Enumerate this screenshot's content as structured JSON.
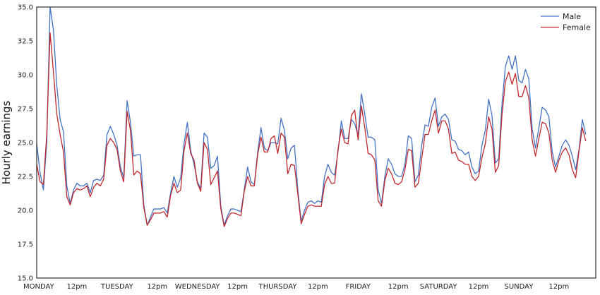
{
  "chart_data": {
    "type": "line",
    "title": "",
    "xlabel": "",
    "ylabel": "Hourly earnings",
    "ylim": [
      15.0,
      35.0
    ],
    "yticks": [
      "15.0",
      "17.5",
      "20.0",
      "22.5",
      "25.0",
      "27.5",
      "30.0",
      "32.5",
      "35.0"
    ],
    "xlim": [
      0,
      167
    ],
    "xticks": [
      {
        "x": 0,
        "label": "MONDAY"
      },
      {
        "x": 12,
        "label": "12pm"
      },
      {
        "x": 24,
        "label": "TUESDAY"
      },
      {
        "x": 36,
        "label": "12pm"
      },
      {
        "x": 48,
        "label": "WEDNESDAY"
      },
      {
        "x": 60,
        "label": "12pm"
      },
      {
        "x": 72,
        "label": "THURSDAY"
      },
      {
        "x": 84,
        "label": "12pm"
      },
      {
        "x": 96,
        "label": "FRIDAY"
      },
      {
        "x": 108,
        "label": "12pm"
      },
      {
        "x": 120,
        "label": "SATURDAY"
      },
      {
        "x": 132,
        "label": "12pm"
      },
      {
        "x": 144,
        "label": "SUNDAY"
      },
      {
        "x": 156,
        "label": "12pm"
      }
    ],
    "grid": false,
    "legend": "top-right",
    "series": [
      {
        "name": "Male",
        "color": "#4472c4",
        "values": [
          24.9,
          22.8,
          21.5,
          25.0,
          35.0,
          33.3,
          29.2,
          26.7,
          25.8,
          21.8,
          20.5,
          21.5,
          22.0,
          21.8,
          21.8,
          22.0,
          21.3,
          22.2,
          22.3,
          22.2,
          22.6,
          25.6,
          26.2,
          25.6,
          24.8,
          23.2,
          22.4,
          28.1,
          26.5,
          24.0,
          24.1,
          24.1,
          20.4,
          18.9,
          19.5,
          20.1,
          20.1,
          20.1,
          20.2,
          19.8,
          21.3,
          22.5,
          21.7,
          22.4,
          24.9,
          26.5,
          24.4,
          23.4,
          22.1,
          21.6,
          25.7,
          25.4,
          23.1,
          23.3,
          24.0,
          20.3,
          18.9,
          19.6,
          20.1,
          20.1,
          20.0,
          19.9,
          21.5,
          23.2,
          22.1,
          21.9,
          24.3,
          26.1,
          24.6,
          24.4,
          25.0,
          25.0,
          24.9,
          26.8,
          25.9,
          23.8,
          24.6,
          24.8,
          21.5,
          19.2,
          20.0,
          20.6,
          20.7,
          20.5,
          20.7,
          20.6,
          22.5,
          23.4,
          22.8,
          22.6,
          24.3,
          26.6,
          25.3,
          25.3,
          26.7,
          26.4,
          25.5,
          28.6,
          27.1,
          25.4,
          25.4,
          25.2,
          21.5,
          20.5,
          22.5,
          23.8,
          23.4,
          22.7,
          22.5,
          22.5,
          23.4,
          25.5,
          25.3,
          22.1,
          22.6,
          24.8,
          26.3,
          26.2,
          27.6,
          28.3,
          26.2,
          26.9,
          27.1,
          26.7,
          25.2,
          25.1,
          24.5,
          24.4,
          24.1,
          24.3,
          23.2,
          22.7,
          22.9,
          24.8,
          25.9,
          28.2,
          27.0,
          23.5,
          23.8,
          27.9,
          30.6,
          31.4,
          30.4,
          31.4,
          29.6,
          29.4,
          30.4,
          29.7,
          26.0,
          24.6,
          26.1,
          27.6,
          27.4,
          26.9,
          24.3,
          23.2,
          24.0,
          24.8,
          25.2,
          24.8,
          24.0,
          23.0,
          24.5,
          26.7,
          25.6
        ]
      },
      {
        "name": "Female",
        "color": "#c0282d",
        "values": [
          23.4,
          22.1,
          21.9,
          25.6,
          33.1,
          30.2,
          27.1,
          25.6,
          24.3,
          21.0,
          20.4,
          21.3,
          21.6,
          21.5,
          21.6,
          21.8,
          21.0,
          21.7,
          22.0,
          21.8,
          22.3,
          24.8,
          25.3,
          25.0,
          24.5,
          22.9,
          22.1,
          27.3,
          25.9,
          22.6,
          22.9,
          22.7,
          20.2,
          18.9,
          19.3,
          19.8,
          19.8,
          19.8,
          19.9,
          19.5,
          21.1,
          22.0,
          21.3,
          21.5,
          24.4,
          25.7,
          24.2,
          23.7,
          22.0,
          21.4,
          25.0,
          24.5,
          21.9,
          22.4,
          22.9,
          20.1,
          18.8,
          19.4,
          19.8,
          19.8,
          19.7,
          19.6,
          21.4,
          22.5,
          21.8,
          21.8,
          24.1,
          25.4,
          24.3,
          24.3,
          25.3,
          25.5,
          24.2,
          25.7,
          25.4,
          22.7,
          23.4,
          23.3,
          21.2,
          19.0,
          19.7,
          20.3,
          20.4,
          20.3,
          20.3,
          20.3,
          21.9,
          22.5,
          22.0,
          22.0,
          24.5,
          26.0,
          25.0,
          24.9,
          27.0,
          27.4,
          25.2,
          27.7,
          26.1,
          24.2,
          24.1,
          23.7,
          20.7,
          20.3,
          22.2,
          23.1,
          22.7,
          22.0,
          21.9,
          22.1,
          23.0,
          24.5,
          24.4,
          21.7,
          22.0,
          23.8,
          25.6,
          25.6,
          26.6,
          27.4,
          25.7,
          26.6,
          26.6,
          26.0,
          24.2,
          24.3,
          23.7,
          23.6,
          23.4,
          23.4,
          22.5,
          22.2,
          22.5,
          23.9,
          24.9,
          26.9,
          26.0,
          22.8,
          23.3,
          27.1,
          29.5,
          30.2,
          29.3,
          30.1,
          28.4,
          28.4,
          29.2,
          28.3,
          25.2,
          24.0,
          25.3,
          26.5,
          26.4,
          25.7,
          23.7,
          22.8,
          23.7,
          24.3,
          24.6,
          24.1,
          23.0,
          22.4,
          24.4,
          26.1,
          25.1
        ]
      }
    ]
  }
}
